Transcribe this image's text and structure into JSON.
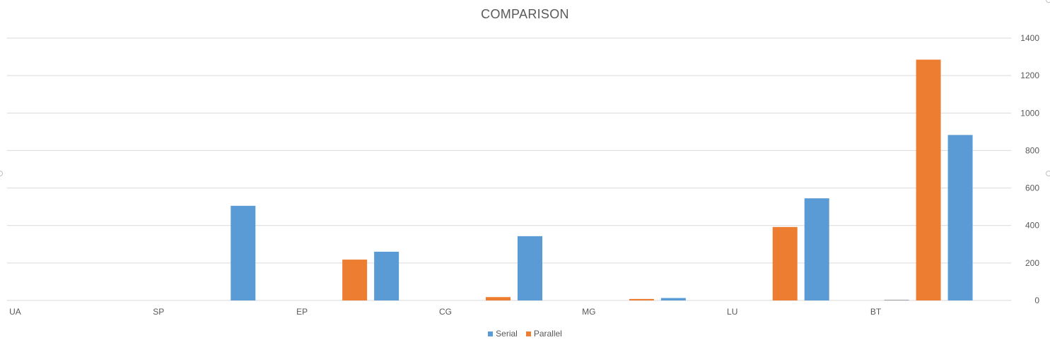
{
  "chart_data": {
    "type": "bar",
    "title": "COMPARISON",
    "categories": [
      "UA",
      "SP",
      "EP",
      "CG",
      "MG",
      "LU",
      "BT"
    ],
    "series": [
      {
        "name": "Parallel",
        "color": "#ED7D31",
        "values": [
          0,
          0,
          218,
          18,
          8,
          392,
          1285
        ]
      },
      {
        "name": "Serial",
        "color": "#5B9BD5",
        "values": [
          0,
          505,
          260,
          343,
          13,
          545,
          883
        ]
      }
    ],
    "legend_order": [
      "Serial",
      "Parallel"
    ],
    "extra_marks": [
      {
        "category": "BT",
        "value": 4,
        "color": "#A5A5A5"
      }
    ],
    "ylim": [
      0,
      1400
    ],
    "yticks": [
      0,
      200,
      400,
      600,
      800,
      1000,
      1200,
      1400
    ],
    "y_axis_position": "right",
    "grid": true,
    "legend_position": "bottom",
    "xlabel": "",
    "ylabel": ""
  },
  "colors": {
    "gridline": "#D9D9D9",
    "text": "#595959"
  }
}
